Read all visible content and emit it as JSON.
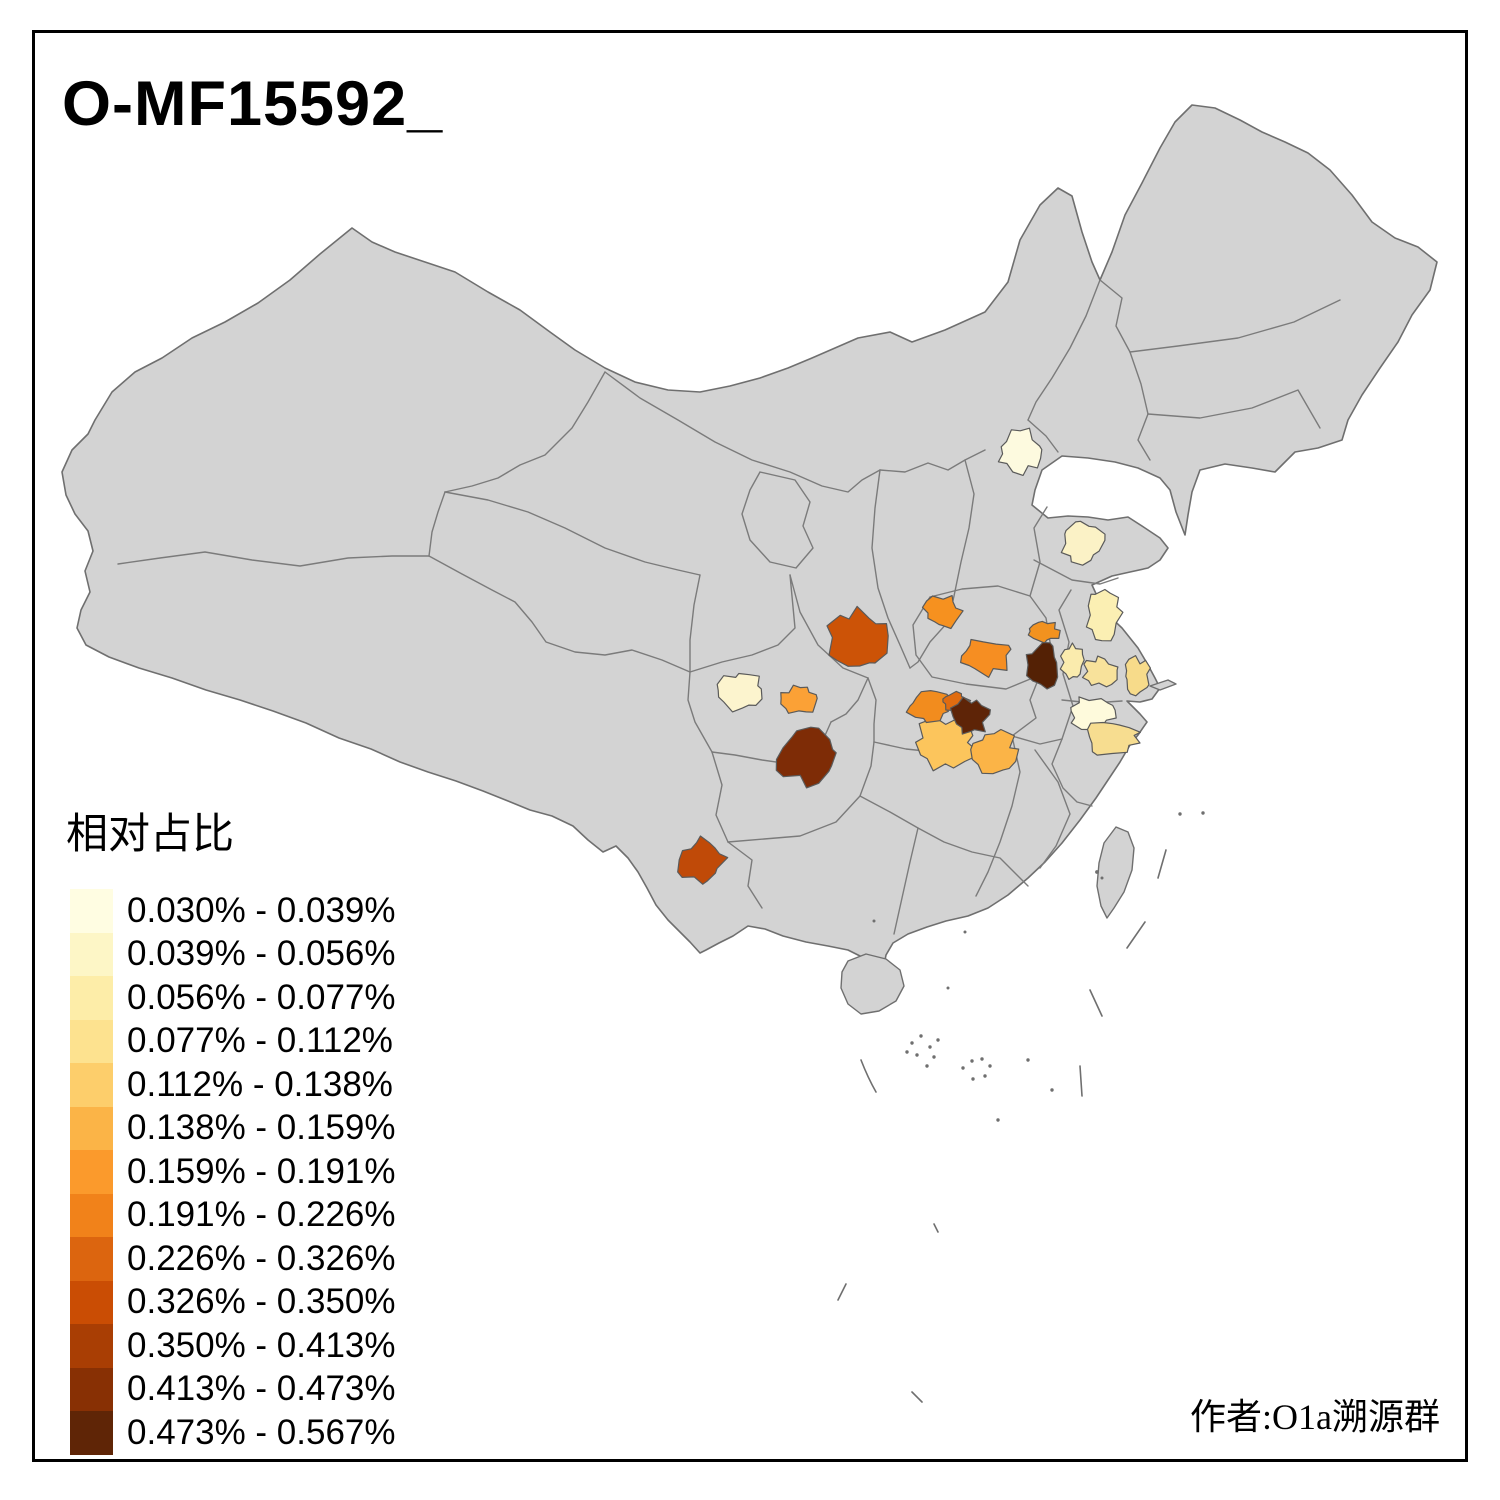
{
  "title": "O-MF15592_",
  "attribution": "作者:O1a溯源群",
  "legend": {
    "title": "相对占比",
    "items": [
      {
        "range": "0.030% - 0.039%",
        "color": "#FFFDE2"
      },
      {
        "range": "0.039% - 0.056%",
        "color": "#FDF6C6"
      },
      {
        "range": "0.056% - 0.077%",
        "color": "#FDEDA8"
      },
      {
        "range": "0.077% - 0.112%",
        "color": "#FDE28F"
      },
      {
        "range": "0.112% - 0.138%",
        "color": "#FDCE6B"
      },
      {
        "range": "0.138% - 0.159%",
        "color": "#FBB447"
      },
      {
        "range": "0.159% - 0.191%",
        "color": "#FB9A2C"
      },
      {
        "range": "0.191% - 0.226%",
        "color": "#F1821A"
      },
      {
        "range": "0.226% - 0.326%",
        "color": "#DC650F"
      },
      {
        "range": "0.326% - 0.350%",
        "color": "#CA4D04"
      },
      {
        "range": "0.350% - 0.413%",
        "color": "#A93E04"
      },
      {
        "range": "0.413% - 0.473%",
        "color": "#883004"
      },
      {
        "range": "0.473% - 0.567%",
        "color": "#5F2506"
      }
    ]
  },
  "map": {
    "land_color": "#D3D3D3",
    "border_color": "#7B7B7B",
    "sea_color": "#FFFFFF",
    "frame_color": "#000000",
    "regions": {
      "r_beijing": {
        "color": "#FDFADF",
        "legend_bin": 1
      },
      "r_shandong_w": {
        "color": "#FBF2C6",
        "legend_bin": 2
      },
      "r_jiangsu_n": {
        "color": "#FBEFB3",
        "legend_bin": 3
      },
      "r_jiangsu_w": {
        "color": "#FAEBAD",
        "legend_bin": 3
      },
      "r_jiangsu_c": {
        "color": "#F8E29B",
        "legend_bin": 4
      },
      "r_shanghai_w": {
        "color": "#F7DB8A",
        "legend_bin": 4
      },
      "r_zhejiang_n": {
        "color": "#FEFADC",
        "legend_bin": 1
      },
      "r_zhejiang_c": {
        "color": "#F7DD90",
        "legend_bin": 4
      },
      "r_henan_n": {
        "color": "#F6911F",
        "legend_bin": 8
      },
      "r_henan_s": {
        "color": "#F68E22",
        "legend_bin": 8
      },
      "r_anhui_n": {
        "color": "#F2921F",
        "legend_bin": 8
      },
      "r_anhui_c_dark": {
        "color": "#542105",
        "legend_bin": 13
      },
      "r_shaanxi_s": {
        "color": "#CC5307",
        "legend_bin": 10
      },
      "r_hubei_w": {
        "color": "#F28C1E",
        "legend_bin": 8
      },
      "r_hubei_no": {
        "color": "#E06C10",
        "legend_bin": 9
      },
      "r_hubei_c_dark": {
        "color": "#5E2407",
        "legend_bin": 13
      },
      "r_hunan_n": {
        "color": "#FCC55C",
        "legend_bin": 5
      },
      "r_hunan_e": {
        "color": "#FBB447",
        "legend_bin": 6
      },
      "r_sichuan_c": {
        "color": "#FCF4CE",
        "legend_bin": 2
      },
      "r_chongqing_w": {
        "color": "#FBA136",
        "legend_bin": 7
      },
      "r_guizhou_n_dark": {
        "color": "#7E2C06",
        "legend_bin": 12
      },
      "r_yunnan_c": {
        "color": "#C04A08",
        "legend_bin": 11
      }
    }
  }
}
